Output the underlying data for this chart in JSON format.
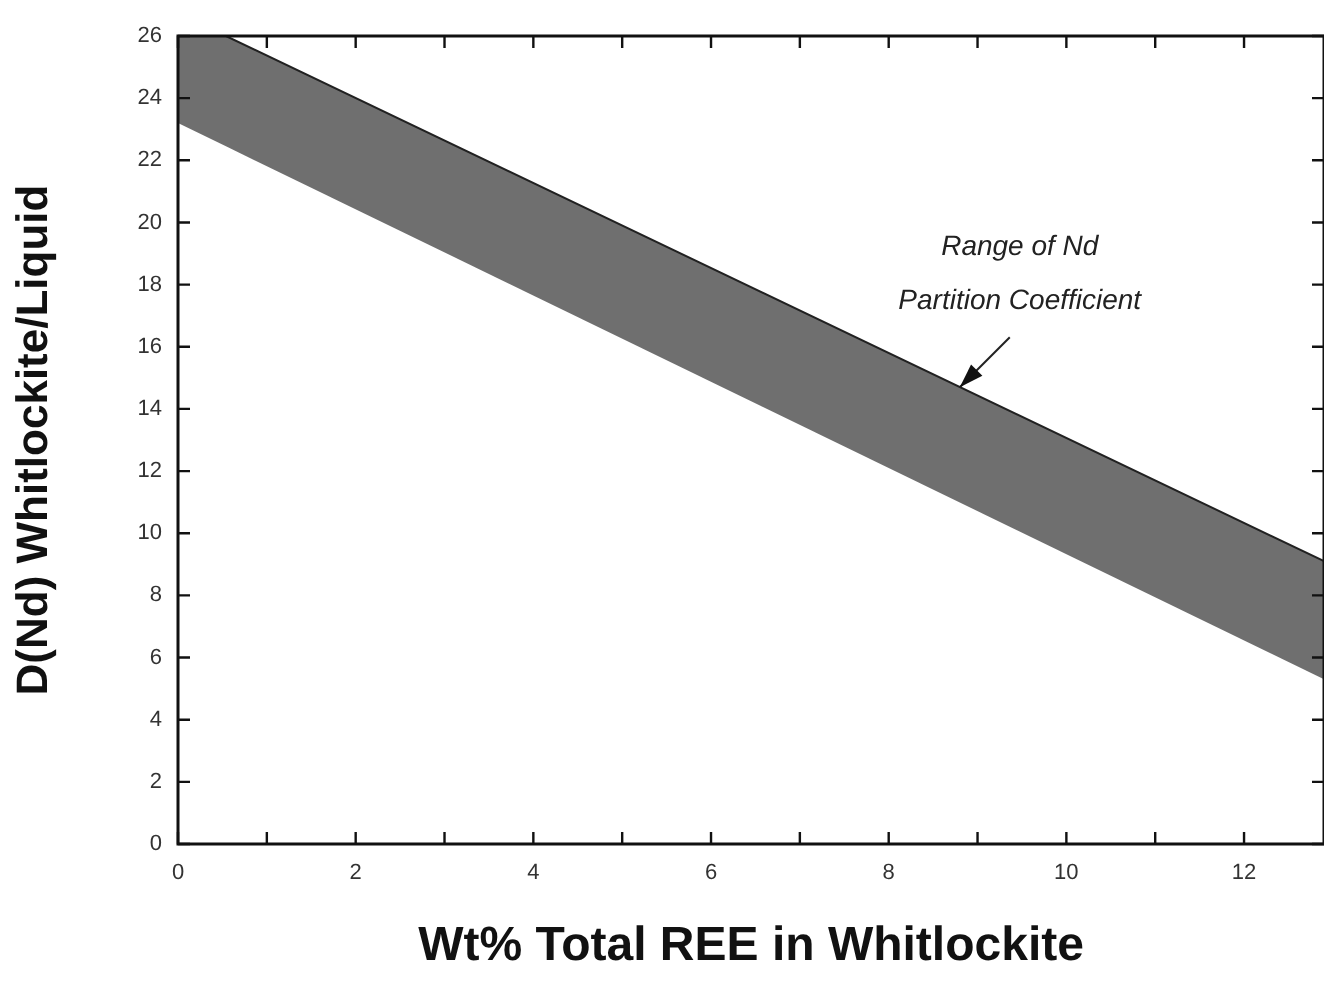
{
  "chart_data": {
    "type": "area",
    "xlabel": "Wt% Total REE in Whitlockite",
    "ylabel": "D(Nd) Whitlockite/Liquid",
    "xlim": [
      0,
      12.9
    ],
    "ylim": [
      0,
      26
    ],
    "xticks": [
      0,
      {
        "value": 1,
        "label": null
      },
      2,
      {
        "value": 3,
        "label": null
      },
      4,
      {
        "value": 5,
        "label": null
      },
      6,
      {
        "value": 7,
        "label": null
      },
      8,
      {
        "value": 9,
        "label": null
      },
      10,
      {
        "value": 11,
        "label": null
      },
      12
    ],
    "yticks": [
      0,
      2,
      4,
      6,
      8,
      10,
      12,
      14,
      16,
      18,
      20,
      22,
      24,
      26
    ],
    "series": [
      {
        "type": "line",
        "color": "#222222",
        "x": [
          0,
          0.54,
          12.9
        ],
        "values": [
          26,
          26,
          9.1
        ],
        "lower": [
          23.2,
          22.45,
          5.3
        ],
        "upper": [
          26,
          26,
          9.1
        ]
      }
    ],
    "annotations": [
      {
        "text": "Range of Nd\nPartition Coefficient",
        "x": 8.8,
        "y": 14.7
      }
    ],
    "legend": false,
    "grid": false
  }
}
